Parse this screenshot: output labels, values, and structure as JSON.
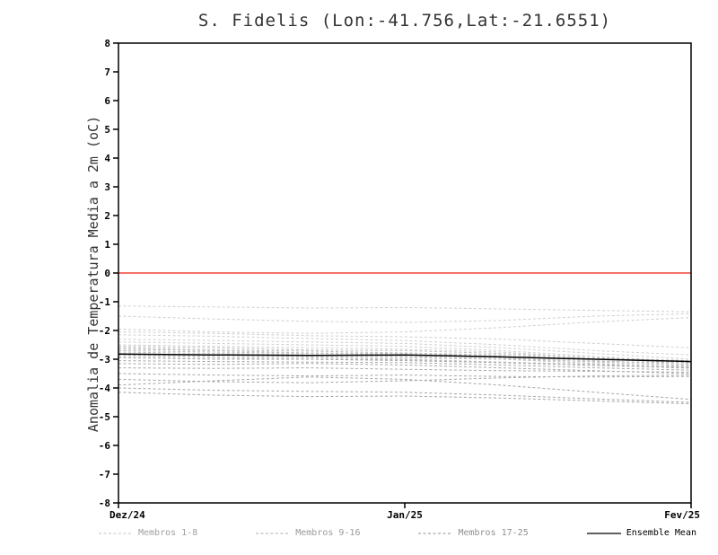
{
  "chart_data": {
    "type": "line",
    "title": "S. Fidelis (Lon:-41.756,Lat:-21.6551)",
    "ylabel": "Anomalia de Temperatura Media a 2m (oC)",
    "xlabel": "",
    "ylim": [
      -8,
      8
    ],
    "ytick_step": 1,
    "grid": false,
    "x_tick_labels": [
      "Dez/24",
      "Jan/25",
      "Fev/25"
    ],
    "x_tick_positions": [
      0,
      0.5,
      1
    ],
    "zero_line": {
      "value": 0,
      "color": "#ef4438"
    },
    "legend": {
      "position": "bottom",
      "items": [
        {
          "label": "Membros 1-8",
          "color": "#cfcfcf",
          "dashed": true,
          "label_color": "#a0a0a0"
        },
        {
          "label": "Membros 9-16",
          "color": "#bdbdbd",
          "dashed": true,
          "label_color": "#9a9a9a"
        },
        {
          "label": "Membros 17-25",
          "color": "#a6a6a6",
          "dashed": true,
          "label_color": "#8f8f8f"
        },
        {
          "label": "Ensemble Mean",
          "color": "#000000",
          "dashed": false,
          "label_color": "#000000"
        }
      ]
    },
    "members": [
      {
        "group": 0,
        "values": [
          -1.15,
          -1.18,
          -1.22,
          -1.2,
          -1.25,
          -1.3,
          -1.35
        ]
      },
      {
        "group": 0,
        "values": [
          -1.5,
          -1.6,
          -1.68,
          -1.72,
          -1.65,
          -1.5,
          -1.42
        ]
      },
      {
        "group": 0,
        "values": [
          -1.95,
          -2.05,
          -2.1,
          -2.05,
          -1.9,
          -1.7,
          -1.55
        ]
      },
      {
        "group": 0,
        "values": [
          -2.05,
          -2.1,
          -2.18,
          -2.22,
          -2.3,
          -2.45,
          -2.6
        ]
      },
      {
        "group": 0,
        "values": [
          -2.15,
          -2.2,
          -2.28,
          -2.35,
          -2.5,
          -2.7,
          -2.85
        ]
      },
      {
        "group": 0,
        "values": [
          -2.3,
          -2.35,
          -2.4,
          -2.45,
          -2.6,
          -2.8,
          -3.0
        ]
      },
      {
        "group": 0,
        "values": [
          -2.4,
          -2.45,
          -2.5,
          -2.55,
          -2.7,
          -2.9,
          -3.1
        ]
      },
      {
        "group": 0,
        "values": [
          -2.5,
          -2.55,
          -2.6,
          -2.65,
          -2.75,
          -2.95,
          -3.15
        ]
      },
      {
        "group": 1,
        "values": [
          -2.55,
          -2.6,
          -2.68,
          -2.7,
          -2.8,
          -2.95,
          -3.05
        ]
      },
      {
        "group": 1,
        "values": [
          -2.6,
          -2.68,
          -2.72,
          -2.78,
          -2.85,
          -3.0,
          -3.12
        ]
      },
      {
        "group": 1,
        "values": [
          -2.65,
          -2.7,
          -2.78,
          -2.8,
          -2.9,
          -3.05,
          -3.18
        ]
      },
      {
        "group": 1,
        "values": [
          -2.7,
          -2.75,
          -2.8,
          -2.85,
          -2.95,
          -3.1,
          -3.22
        ]
      },
      {
        "group": 1,
        "values": [
          -2.75,
          -2.8,
          -2.85,
          -2.9,
          -3.0,
          -3.15,
          -3.28
        ]
      },
      {
        "group": 1,
        "values": [
          -2.8,
          -2.85,
          -2.9,
          -2.95,
          -3.0,
          -3.08,
          -3.12
        ]
      },
      {
        "group": 1,
        "values": [
          -2.85,
          -2.9,
          -2.95,
          -3.0,
          -3.1,
          -3.2,
          -3.32
        ]
      },
      {
        "group": 1,
        "values": [
          -2.9,
          -2.95,
          -3.0,
          -3.02,
          -3.1,
          -3.18,
          -3.25
        ]
      },
      {
        "group": 2,
        "values": [
          -2.95,
          -3.0,
          -3.0,
          -3.05,
          -3.12,
          -3.22,
          -3.3
        ]
      },
      {
        "group": 2,
        "values": [
          -3.05,
          -3.08,
          -3.1,
          -3.12,
          -3.2,
          -3.3,
          -3.38
        ]
      },
      {
        "group": 2,
        "values": [
          -3.15,
          -3.18,
          -3.15,
          -3.2,
          -3.3,
          -3.4,
          -3.5
        ]
      },
      {
        "group": 2,
        "values": [
          -3.3,
          -3.32,
          -3.3,
          -3.35,
          -3.4,
          -3.42,
          -3.45
        ]
      },
      {
        "group": 2,
        "values": [
          -3.5,
          -3.55,
          -3.58,
          -3.55,
          -3.6,
          -3.62,
          -3.6
        ]
      },
      {
        "group": 2,
        "values": [
          -3.7,
          -3.78,
          -3.82,
          -3.75,
          -3.65,
          -3.58,
          -3.55
        ]
      },
      {
        "group": 2,
        "values": [
          -3.9,
          -3.75,
          -3.62,
          -3.7,
          -3.9,
          -4.15,
          -4.4
        ]
      },
      {
        "group": 2,
        "values": [
          -4.0,
          -4.08,
          -4.12,
          -4.15,
          -4.25,
          -4.38,
          -4.5
        ]
      },
      {
        "group": 2,
        "values": [
          -4.15,
          -4.25,
          -4.3,
          -4.28,
          -4.35,
          -4.45,
          -4.55
        ]
      }
    ],
    "ensemble_mean": {
      "name": "Ensemble Mean",
      "color": "#000000",
      "values": [
        -2.82,
        -2.85,
        -2.87,
        -2.85,
        -2.92,
        -3.0,
        -3.08
      ]
    }
  }
}
